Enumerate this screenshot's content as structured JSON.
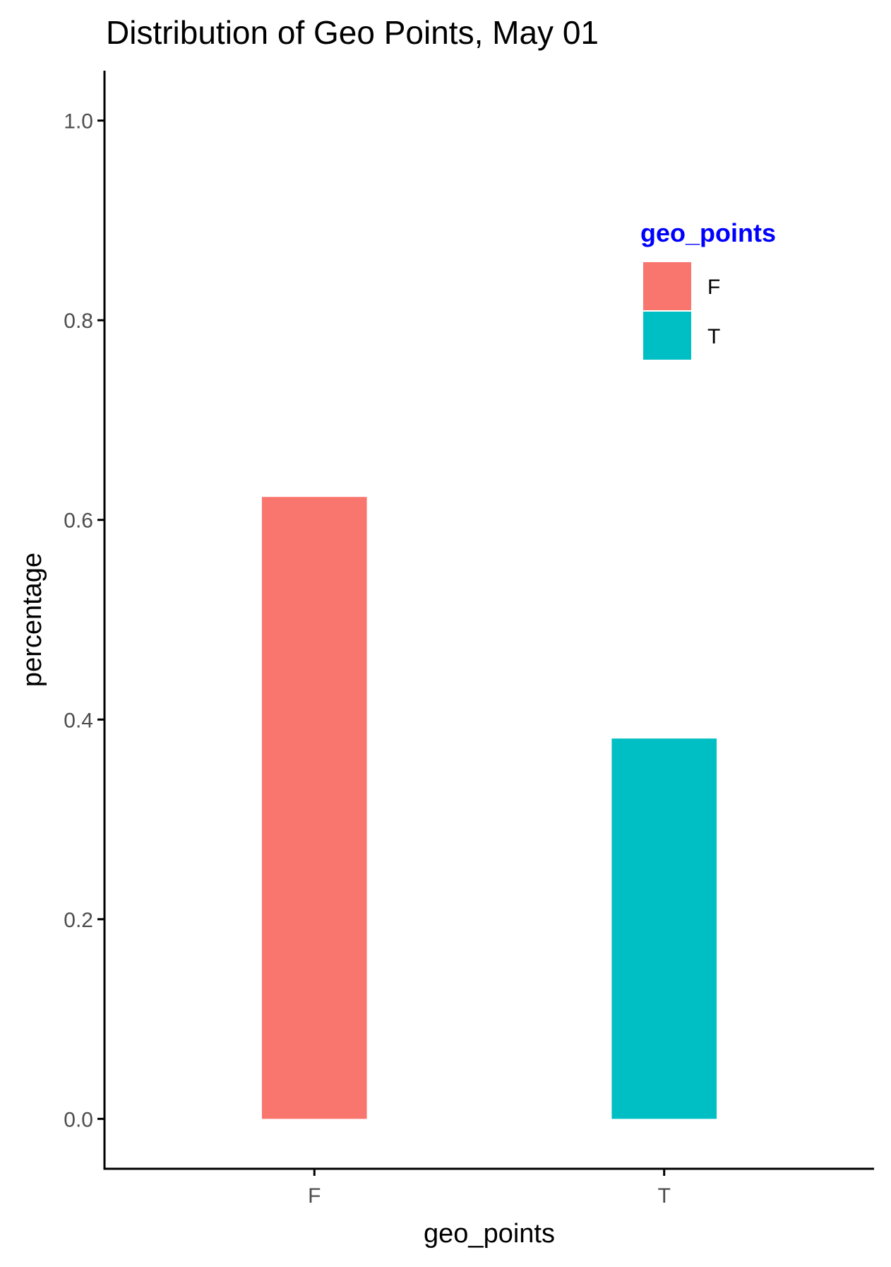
{
  "chart_data": {
    "type": "bar",
    "title": "Distribution of Geo Points, May 01",
    "xlabel": "geo_points",
    "ylabel": "percentage",
    "categories": [
      "F",
      "T"
    ],
    "values": [
      0.623,
      0.381
    ],
    "colors": [
      "#F8766D",
      "#00BFC4"
    ],
    "ylim": [
      -0.05,
      1.05
    ],
    "yticks": [
      0.0,
      0.2,
      0.4,
      0.6,
      0.8,
      1.0
    ],
    "ytick_labels": [
      "0.0",
      "0.2",
      "0.4",
      "0.6",
      "0.8",
      "1.0"
    ],
    "grid": false,
    "legend": {
      "title": "geo_points",
      "title_color": "#0000FF",
      "position": "top-right",
      "entries": [
        {
          "label": "F",
          "color": "#F8766D"
        },
        {
          "label": "T",
          "color": "#00BFC4"
        }
      ]
    }
  }
}
